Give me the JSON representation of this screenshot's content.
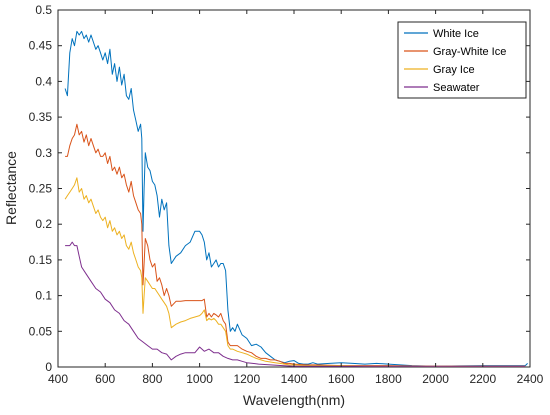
{
  "chart_data": {
    "type": "line",
    "title": "",
    "xlabel": "Wavelength(nm)",
    "ylabel": "Reflectance",
    "xlim": [
      400,
      2400
    ],
    "ylim": [
      0,
      0.5
    ],
    "xticks": [
      400,
      600,
      800,
      1000,
      1200,
      1400,
      1600,
      1800,
      2000,
      2200,
      2400
    ],
    "yticks": [
      0,
      0.05,
      0.1,
      0.15,
      0.2,
      0.25,
      0.3,
      0.35,
      0.4,
      0.45,
      0.5
    ],
    "grid": false,
    "legend_position": "top-right",
    "series": [
      {
        "name": "White Ice",
        "color": "#0072BD",
        "x": [
          430,
          440,
          450,
          460,
          470,
          480,
          490,
          500,
          510,
          520,
          530,
          540,
          550,
          560,
          570,
          580,
          590,
          600,
          610,
          620,
          630,
          640,
          650,
          660,
          670,
          680,
          690,
          700,
          710,
          720,
          730,
          740,
          750,
          755,
          760,
          765,
          770,
          780,
          790,
          800,
          810,
          820,
          830,
          840,
          850,
          860,
          870,
          880,
          900,
          920,
          940,
          960,
          980,
          1000,
          1010,
          1020,
          1030,
          1040,
          1050,
          1060,
          1070,
          1080,
          1090,
          1100,
          1110,
          1120,
          1130,
          1140,
          1150,
          1160,
          1180,
          1200,
          1220,
          1240,
          1260,
          1280,
          1300,
          1320,
          1340,
          1360,
          1380,
          1400,
          1420,
          1440,
          1460,
          1480,
          1500,
          1550,
          1600,
          1650,
          1700,
          1750,
          1800,
          1850,
          1900,
          2000,
          2100,
          2200,
          2300,
          2380,
          2390
        ],
        "y": [
          0.39,
          0.38,
          0.44,
          0.46,
          0.45,
          0.47,
          0.465,
          0.47,
          0.46,
          0.465,
          0.455,
          0.465,
          0.455,
          0.445,
          0.45,
          0.44,
          0.43,
          0.44,
          0.425,
          0.445,
          0.41,
          0.425,
          0.4,
          0.42,
          0.395,
          0.41,
          0.38,
          0.375,
          0.39,
          0.36,
          0.345,
          0.33,
          0.34,
          0.32,
          0.19,
          0.25,
          0.3,
          0.28,
          0.275,
          0.26,
          0.255,
          0.24,
          0.21,
          0.235,
          0.22,
          0.23,
          0.17,
          0.145,
          0.155,
          0.16,
          0.17,
          0.175,
          0.19,
          0.19,
          0.185,
          0.175,
          0.15,
          0.16,
          0.14,
          0.145,
          0.15,
          0.14,
          0.145,
          0.145,
          0.135,
          0.08,
          0.05,
          0.055,
          0.05,
          0.06,
          0.045,
          0.04,
          0.03,
          0.032,
          0.028,
          0.02,
          0.015,
          0.01,
          0.008,
          0.006,
          0.008,
          0.009,
          0.005,
          0.004,
          0.004,
          0.006,
          0.004,
          0.005,
          0.006,
          0.005,
          0.004,
          0.005,
          0.004,
          0.003,
          0.002,
          0.001,
          0.0015,
          0.002,
          0.002,
          0.002,
          0.005
        ]
      },
      {
        "name": "Gray-White Ice",
        "color": "#D95319",
        "x": [
          430,
          440,
          450,
          460,
          470,
          480,
          490,
          500,
          510,
          520,
          530,
          540,
          550,
          560,
          570,
          580,
          590,
          600,
          610,
          620,
          630,
          640,
          650,
          660,
          670,
          680,
          690,
          700,
          710,
          720,
          730,
          740,
          750,
          755,
          760,
          765,
          770,
          780,
          790,
          800,
          810,
          820,
          830,
          840,
          850,
          860,
          870,
          880,
          900,
          920,
          940,
          960,
          980,
          1000,
          1010,
          1020,
          1030,
          1040,
          1050,
          1060,
          1070,
          1080,
          1090,
          1100,
          1110,
          1120,
          1130,
          1140,
          1160,
          1180,
          1200,
          1220,
          1240,
          1260,
          1280,
          1300,
          1320,
          1340,
          1360,
          1380,
          1400,
          1450,
          1500,
          1600,
          1700,
          1800,
          2000,
          2200,
          2380
        ],
        "y": [
          0.295,
          0.295,
          0.31,
          0.32,
          0.325,
          0.34,
          0.325,
          0.33,
          0.315,
          0.325,
          0.31,
          0.32,
          0.31,
          0.3,
          0.305,
          0.295,
          0.295,
          0.3,
          0.285,
          0.295,
          0.275,
          0.28,
          0.27,
          0.28,
          0.265,
          0.27,
          0.255,
          0.245,
          0.26,
          0.24,
          0.23,
          0.22,
          0.215,
          0.2,
          0.115,
          0.145,
          0.18,
          0.17,
          0.15,
          0.14,
          0.145,
          0.12,
          0.125,
          0.115,
          0.1,
          0.11,
          0.1,
          0.085,
          0.092,
          0.092,
          0.093,
          0.093,
          0.093,
          0.093,
          0.093,
          0.095,
          0.07,
          0.075,
          0.07,
          0.075,
          0.073,
          0.07,
          0.075,
          0.065,
          0.06,
          0.035,
          0.03,
          0.03,
          0.03,
          0.025,
          0.022,
          0.02,
          0.015,
          0.012,
          0.012,
          0.01,
          0.01,
          0.008,
          0.005,
          0.005,
          0.004,
          0.003,
          0.003,
          0.002,
          0.002,
          0.002,
          0.001,
          0.001,
          0.001
        ]
      },
      {
        "name": "Gray Ice",
        "color": "#EDB120",
        "x": [
          430,
          440,
          450,
          460,
          470,
          480,
          490,
          500,
          510,
          520,
          530,
          540,
          550,
          560,
          570,
          580,
          590,
          600,
          610,
          620,
          630,
          640,
          650,
          660,
          670,
          680,
          690,
          700,
          710,
          720,
          730,
          740,
          750,
          755,
          760,
          765,
          770,
          780,
          790,
          800,
          810,
          820,
          830,
          840,
          850,
          860,
          870,
          880,
          900,
          920,
          940,
          960,
          980,
          1000,
          1010,
          1020,
          1030,
          1040,
          1050,
          1060,
          1070,
          1080,
          1090,
          1100,
          1110,
          1120,
          1130,
          1140,
          1160,
          1180,
          1200,
          1220,
          1240,
          1260,
          1280,
          1300,
          1320,
          1340,
          1360,
          1380,
          1400,
          1450,
          1500,
          1600,
          1700,
          1800,
          2000,
          2200,
          2380
        ],
        "y": [
          0.235,
          0.24,
          0.245,
          0.25,
          0.255,
          0.265,
          0.245,
          0.25,
          0.235,
          0.24,
          0.23,
          0.235,
          0.225,
          0.215,
          0.22,
          0.21,
          0.205,
          0.21,
          0.195,
          0.205,
          0.19,
          0.195,
          0.185,
          0.19,
          0.18,
          0.185,
          0.17,
          0.165,
          0.175,
          0.16,
          0.15,
          0.14,
          0.135,
          0.125,
          0.075,
          0.1,
          0.125,
          0.12,
          0.115,
          0.11,
          0.11,
          0.105,
          0.1,
          0.095,
          0.09,
          0.085,
          0.075,
          0.055,
          0.06,
          0.063,
          0.065,
          0.068,
          0.07,
          0.072,
          0.075,
          0.08,
          0.065,
          0.068,
          0.066,
          0.068,
          0.065,
          0.06,
          0.06,
          0.055,
          0.05,
          0.03,
          0.025,
          0.025,
          0.022,
          0.02,
          0.018,
          0.015,
          0.012,
          0.01,
          0.008,
          0.007,
          0.006,
          0.005,
          0.004,
          0.003,
          0.003,
          0.002,
          0.002,
          0.002,
          0.001,
          0.001,
          0.001,
          0.001,
          0.001
        ]
      },
      {
        "name": "Seawater",
        "color": "#7E2F8E",
        "x": [
          430,
          440,
          450,
          460,
          470,
          480,
          490,
          500,
          520,
          540,
          560,
          580,
          600,
          620,
          640,
          660,
          680,
          700,
          720,
          740,
          760,
          780,
          800,
          820,
          840,
          860,
          880,
          900,
          920,
          940,
          960,
          980,
          1000,
          1020,
          1040,
          1060,
          1080,
          1100,
          1120,
          1140,
          1160,
          1180,
          1200,
          1250,
          1300,
          1350,
          1400,
          1500,
          1600,
          1700,
          1800,
          2000,
          2200,
          2380
        ],
        "y": [
          0.17,
          0.17,
          0.17,
          0.175,
          0.17,
          0.17,
          0.155,
          0.14,
          0.13,
          0.12,
          0.11,
          0.105,
          0.095,
          0.09,
          0.08,
          0.075,
          0.065,
          0.06,
          0.05,
          0.04,
          0.035,
          0.03,
          0.025,
          0.025,
          0.02,
          0.018,
          0.01,
          0.015,
          0.018,
          0.02,
          0.02,
          0.02,
          0.028,
          0.022,
          0.025,
          0.02,
          0.02,
          0.015,
          0.012,
          0.01,
          0.01,
          0.008,
          0.006,
          0.004,
          0.003,
          0.002,
          0.001,
          0.001,
          0.001,
          0.001,
          0.001,
          0.001,
          0.001,
          0.001
        ]
      }
    ]
  }
}
